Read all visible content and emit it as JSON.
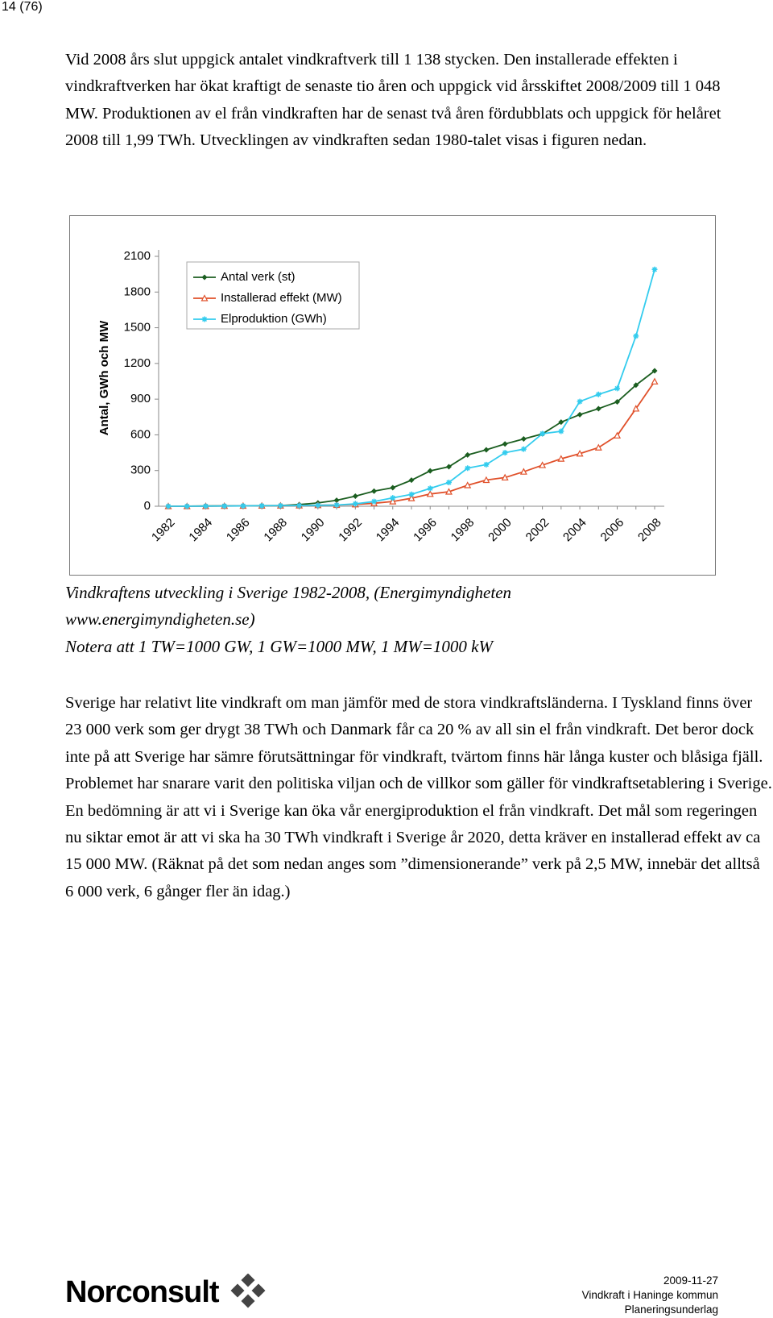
{
  "header": {
    "page": "14 (76)"
  },
  "paragraphs": [
    "Vid 2008 års slut uppgick antalet vindkraftverk till 1 138 stycken. Den installerade effekten i vindkraftverken har ökat kraftigt de senaste tio åren och uppgick vid årsskiftet 2008/2009 till 1 048 MW. Produktionen av el från vindkraften har de senast två åren fördubblats och uppgick för helåret 2008 till 1,99 TWh. Utvecklingen av vindkraften sedan 1980-talet visas i figuren nedan.",
    "Sverige har relativt lite vindkraft om man jämför med de stora vindkraftsländerna. I Tyskland finns över 23 000 verk som ger drygt 38 TWh och Danmark får ca 20 % av all sin el från vindkraft. Det beror dock inte på att Sverige har sämre förutsättningar för vindkraft, tvärtom finns här långa kuster och blåsiga fjäll. Problemet har snarare varit den politiska viljan och de villkor som gäller för vindkraftsetablering i Sverige. En bedömning är att vi i Sverige kan öka vår energiproduktion el från vindkraft. Det mål som regeringen nu siktar emot är att vi ska ha 30 TWh vindkraft i Sverige år 2020, detta kräver en installerad effekt av ca 15 000 MW. (Räknat på det som nedan anges som ”dimensionerande” verk på 2,5 MW, innebär det alltså 6 000 verk, 6 gånger fler än idag.)"
  ],
  "caption": {
    "source": "Vindkraftens utveckling i Sverige 1982-2008, (Energimyndigheten www.energimyndigheten.se)",
    "note": "Notera att 1 TW=1000 GW, 1 GW=1000 MW, 1 MW=1000 kW"
  },
  "chart_data": {
    "type": "line",
    "y_label": "Antal, GWh och MW",
    "categories": [
      "1982",
      null,
      "1984",
      null,
      "1986",
      null,
      "1988",
      null,
      "1990",
      null,
      "1992",
      null,
      "1994",
      null,
      "1996",
      null,
      "1998",
      null,
      "2000",
      null,
      "2002",
      null,
      "2004",
      null,
      "2006",
      null,
      "2008"
    ],
    "series": [
      {
        "name": "Antal verk (st)",
        "color": "#1b5e20",
        "marker": "diamond",
        "values": [
          0,
          1,
          2,
          3,
          4,
          5,
          6,
          14,
          28,
          50,
          85,
          127,
          156,
          219,
          297,
          332,
          431,
          474,
          523,
          566,
          608,
          707,
          770,
          820,
          877,
          1018,
          1138
        ]
      },
      {
        "name": "Installerad effekt (MW)",
        "color": "#e0502a",
        "marker": "triangle",
        "values": [
          0,
          0,
          1,
          2,
          3,
          4,
          5,
          6,
          8,
          10,
          15,
          25,
          40,
          67,
          103,
          122,
          176,
          220,
          241,
          290,
          345,
          399,
          442,
          493,
          594,
          820,
          1048
        ]
      },
      {
        "name": "Elproduktion (GWh)",
        "color": "#33ccee",
        "marker": "star",
        "values": [
          0,
          0,
          1,
          2,
          3,
          4,
          5,
          6,
          8,
          10,
          20,
          40,
          70,
          100,
          150,
          200,
          320,
          350,
          450,
          480,
          610,
          630,
          880,
          940,
          990,
          1430,
          1990
        ]
      }
    ],
    "ylim": [
      0,
      2100
    ],
    "yticks": [
      0,
      300,
      600,
      900,
      1200,
      1500,
      1800,
      2100
    ],
    "grid": false,
    "legend": "upper left"
  },
  "footer": {
    "logo": "Norconsult",
    "date": "2009-11-27",
    "lines": [
      "Vindkraft i Haninge kommun",
      "Planeringsunderlag"
    ]
  }
}
